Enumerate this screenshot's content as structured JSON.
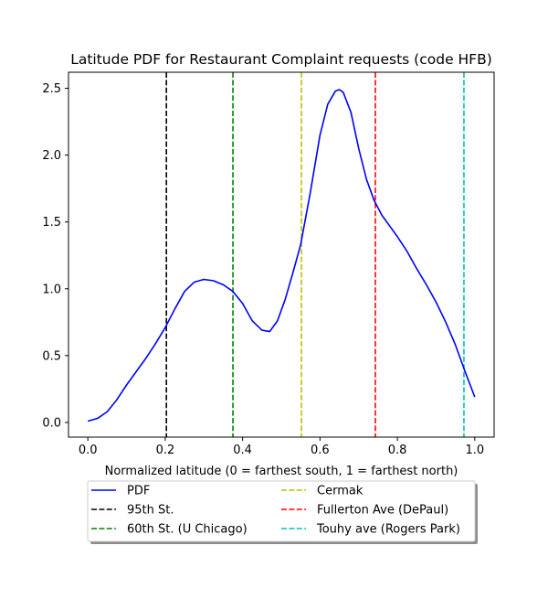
{
  "chart_data": {
    "type": "line",
    "title": "Latitude PDF for Restaurant Complaint  requests (code HFB)",
    "xlabel": "Normalized latitude (0 = farthest south, 1 = farthest north)",
    "ylabel": "",
    "xlim": [
      -0.05,
      1.05
    ],
    "ylim": [
      -0.11,
      2.62
    ],
    "x_ticks": [
      0.0,
      0.2,
      0.4,
      0.6,
      0.8,
      1.0
    ],
    "x_tick_labels": [
      "0.0",
      "0.2",
      "0.4",
      "0.6",
      "0.8",
      "1.0"
    ],
    "y_ticks": [
      0.0,
      0.5,
      1.0,
      1.5,
      2.0,
      2.5
    ],
    "y_tick_labels": [
      "0.0",
      "0.5",
      "1.0",
      "1.5",
      "2.0",
      "2.5"
    ],
    "grid": false,
    "legend": {
      "placement": "below plot, centered, two columns",
      "entries": [
        {
          "label": "PDF",
          "color": "#0000ff",
          "style": "solid"
        },
        {
          "label": "95th St.",
          "color": "#000000",
          "style": "dashed"
        },
        {
          "label": "60th St. (U Chicago)",
          "color": "#008000",
          "style": "dashed"
        },
        {
          "label": "Cermak",
          "color": "#bfbf00",
          "style": "dashed"
        },
        {
          "label": "Fullerton Ave (DePaul)",
          "color": "#ff0000",
          "style": "dashed"
        },
        {
          "label": "Touhy ave (Rogers Park)",
          "color": "#00bfbf",
          "style": "dashed"
        }
      ]
    },
    "series": [
      {
        "name": "PDF",
        "color": "#0000ff",
        "x": [
          0.0,
          0.025,
          0.05,
          0.075,
          0.1,
          0.125,
          0.15,
          0.175,
          0.2,
          0.225,
          0.25,
          0.275,
          0.3,
          0.325,
          0.35,
          0.375,
          0.4,
          0.425,
          0.45,
          0.47,
          0.49,
          0.51,
          0.53,
          0.55,
          0.575,
          0.6,
          0.62,
          0.64,
          0.65,
          0.66,
          0.68,
          0.7,
          0.72,
          0.74,
          0.76,
          0.78,
          0.8,
          0.825,
          0.85,
          0.875,
          0.9,
          0.925,
          0.95,
          0.975,
          1.0
        ],
        "y": [
          0.01,
          0.03,
          0.08,
          0.17,
          0.28,
          0.38,
          0.48,
          0.59,
          0.71,
          0.85,
          0.98,
          1.05,
          1.07,
          1.06,
          1.03,
          0.98,
          0.89,
          0.76,
          0.69,
          0.68,
          0.76,
          0.92,
          1.12,
          1.33,
          1.72,
          2.15,
          2.38,
          2.48,
          2.49,
          2.47,
          2.32,
          2.05,
          1.82,
          1.66,
          1.55,
          1.47,
          1.39,
          1.28,
          1.15,
          1.03,
          0.9,
          0.75,
          0.58,
          0.38,
          0.19
        ]
      }
    ],
    "vlines": [
      {
        "name": "95th St.",
        "x": 0.203,
        "color": "#000000"
      },
      {
        "name": "60th St. (U Chicago)",
        "x": 0.375,
        "color": "#008000"
      },
      {
        "name": "Cermak",
        "x": 0.552,
        "color": "#bfbf00"
      },
      {
        "name": "Fullerton Ave (DePaul)",
        "x": 0.743,
        "color": "#ff0000"
      },
      {
        "name": "Touhy ave (Rogers Park)",
        "x": 0.972,
        "color": "#00bfbf"
      }
    ]
  }
}
